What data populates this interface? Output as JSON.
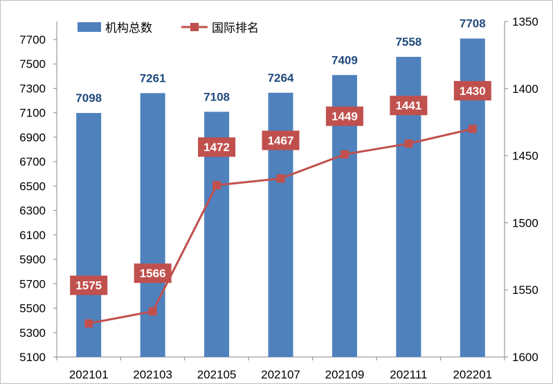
{
  "chart_data": {
    "type": "bar+line",
    "categories": [
      "202101",
      "202103",
      "202105",
      "202107",
      "202109",
      "202111",
      "202201"
    ],
    "series": [
      {
        "name": "机构总数",
        "type": "bar",
        "axis": "left",
        "values": [
          7098,
          7261,
          7108,
          7264,
          7409,
          7558,
          7708
        ],
        "color": "#4f81bd"
      },
      {
        "name": "国际排名",
        "type": "line",
        "axis": "right",
        "values": [
          1575,
          1566,
          1472,
          1467,
          1449,
          1441,
          1430
        ],
        "color": "#c0504d"
      }
    ],
    "left_axis": {
      "ylim": [
        5100,
        7700
      ],
      "ticks": [
        5100,
        5300,
        5500,
        5700,
        5900,
        6100,
        6300,
        6500,
        6700,
        6900,
        7100,
        7300,
        7500,
        7700
      ]
    },
    "right_axis": {
      "ylim": [
        1350,
        1600
      ],
      "reversed": true,
      "ticks": [
        1350,
        1400,
        1450,
        1500,
        1550,
        1600
      ]
    },
    "legend_placement": "top-left",
    "grid": false,
    "bar_label_color": "#1f497d"
  }
}
